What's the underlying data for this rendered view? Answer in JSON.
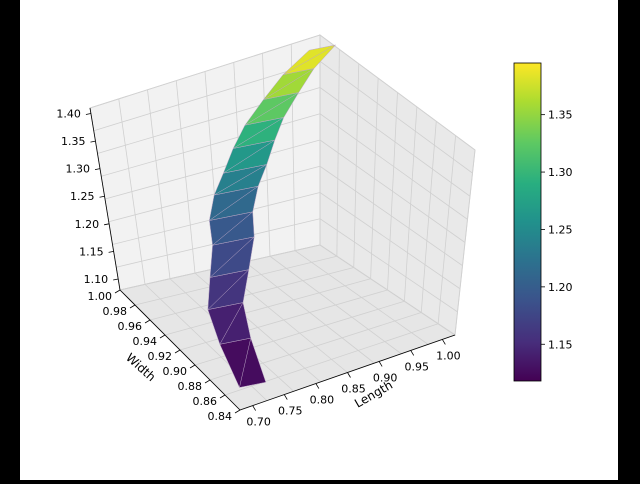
{
  "chart_data": {
    "type": "surface-3d",
    "title": "",
    "xlabel": "Length",
    "ylabel": "Width",
    "zlabel": "",
    "xlim": [
      0.68,
      1.02
    ],
    "ylim": [
      0.84,
      1.0
    ],
    "zlim": [
      1.08,
      1.41
    ],
    "x_ticks": [
      "0.70",
      "0.75",
      "0.80",
      "0.85",
      "0.90",
      "0.95",
      "1.00"
    ],
    "y_ticks": [
      "0.84",
      "0.86",
      "0.88",
      "0.90",
      "0.92",
      "0.94",
      "0.96",
      "0.98",
      "1.00"
    ],
    "z_ticks": [
      "1.10",
      "1.15",
      "1.20",
      "1.25",
      "1.30",
      "1.35",
      "1.40"
    ],
    "colorbar": {
      "colormap": "viridis",
      "range": [
        1.118,
        1.395
      ],
      "ticks": [
        "1.15",
        "1.20",
        "1.25",
        "1.30",
        "1.35"
      ]
    },
    "grid": true,
    "points": [
      {
        "x": 0.7,
        "y": 0.84,
        "z": 1.118
      },
      {
        "x": 0.72,
        "y": 0.88,
        "z": 1.135
      },
      {
        "x": 0.74,
        "y": 0.91,
        "z": 1.15
      },
      {
        "x": 0.77,
        "y": 0.93,
        "z": 1.17
      },
      {
        "x": 0.8,
        "y": 0.95,
        "z": 1.19
      },
      {
        "x": 0.82,
        "y": 0.97,
        "z": 1.2
      },
      {
        "x": 0.84,
        "y": 0.98,
        "z": 1.225
      },
      {
        "x": 0.86,
        "y": 0.985,
        "z": 1.25
      },
      {
        "x": 0.88,
        "y": 0.99,
        "z": 1.28
      },
      {
        "x": 0.9,
        "y": 0.993,
        "z": 1.31
      },
      {
        "x": 0.93,
        "y": 0.996,
        "z": 1.34
      },
      {
        "x": 0.96,
        "y": 0.998,
        "z": 1.37
      },
      {
        "x": 1.0,
        "y": 1.0,
        "z": 1.395
      }
    ]
  }
}
